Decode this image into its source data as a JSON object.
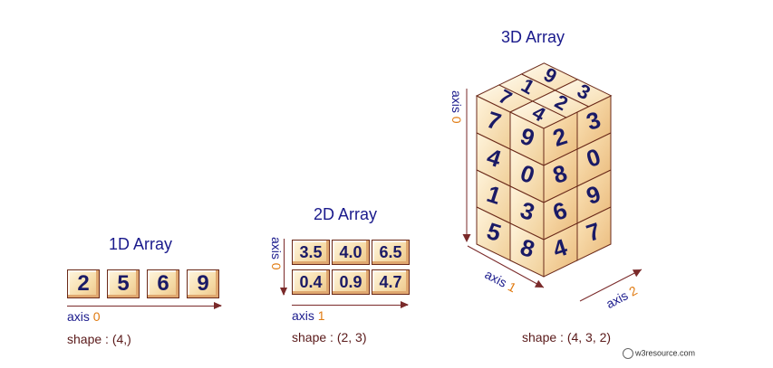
{
  "oned": {
    "title": "1D Array",
    "values": [
      "2",
      "5",
      "6",
      "9"
    ],
    "axis_word": "axis",
    "axis_num": "0",
    "shape": "shape : (4,)"
  },
  "twod": {
    "title": "2D Array",
    "rows": [
      [
        "3.5",
        "4.0",
        "6.5"
      ],
      [
        "0.4",
        "0.9",
        "4.7"
      ]
    ],
    "axis0_word": "axis",
    "axis0_num": "0",
    "axis1_word": "axis",
    "axis1_num": "1",
    "shape": "shape : (2, 3)"
  },
  "threed": {
    "title": "3D Array",
    "top_faces": [
      "7",
      "1",
      "9",
      "4",
      "2",
      "3"
    ],
    "front_left": [
      [
        "7",
        "9"
      ],
      [
        "4",
        "0"
      ],
      [
        "1",
        "3"
      ],
      [
        "5",
        "8"
      ]
    ],
    "front_right": [
      [
        "2",
        "3"
      ],
      [
        "8",
        "0"
      ],
      [
        "6",
        "9"
      ],
      [
        "4",
        "7"
      ]
    ],
    "axis0_word": "axis",
    "axis0_num": "0",
    "axis1_word": "axis",
    "axis1_num": "1",
    "axis2_word": "axis",
    "axis2_num": "2",
    "shape": "shape : (4, 3, 2)"
  },
  "credit": "w3resource.com",
  "colors": {
    "title": "#1a1a8c",
    "axis_num": "#e07a10",
    "cube_fill": "#f6dca8",
    "cube_edge": "#6b2a1a",
    "digit": "#1a1a66"
  }
}
